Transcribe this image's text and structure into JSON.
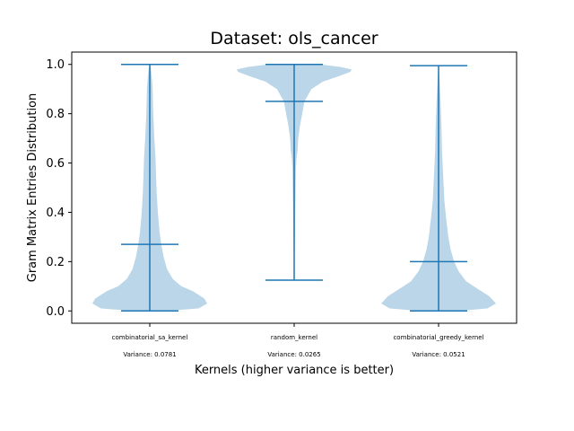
{
  "chart_data": {
    "type": "violin",
    "title": "Dataset: ols_cancer",
    "xlabel": "Kernels (higher variance is better)",
    "ylabel": "Gram Matrix Entries Distribution",
    "ylim": [
      -0.05,
      1.05
    ],
    "yticks": [
      "0.0",
      "0.2",
      "0.4",
      "0.6",
      "0.8",
      "1.0"
    ],
    "grid": false,
    "violin_color": "#1f77b4",
    "categories": [
      {
        "name": "combinatorial_sa_kernel",
        "variance_label": "Variance: 0.0781",
        "min": 0.0,
        "median": 0.27,
        "max": 1.0,
        "profile": [
          [
            0.0,
            0.3
          ],
          [
            0.01,
            0.85
          ],
          [
            0.03,
            1.0
          ],
          [
            0.05,
            0.95
          ],
          [
            0.08,
            0.75
          ],
          [
            0.1,
            0.55
          ],
          [
            0.13,
            0.4
          ],
          [
            0.17,
            0.3
          ],
          [
            0.22,
            0.24
          ],
          [
            0.27,
            0.2
          ],
          [
            0.32,
            0.17
          ],
          [
            0.4,
            0.14
          ],
          [
            0.48,
            0.12
          ],
          [
            0.55,
            0.11
          ],
          [
            0.62,
            0.1
          ],
          [
            0.7,
            0.08
          ],
          [
            0.8,
            0.06
          ],
          [
            0.9,
            0.05
          ],
          [
            0.95,
            0.035
          ],
          [
            0.98,
            0.02
          ],
          [
            1.0,
            0.005
          ]
        ]
      },
      {
        "name": "random_kernel",
        "variance_label": "Variance: 0.0265",
        "min": 0.125,
        "median": 0.85,
        "max": 1.0,
        "profile": [
          [
            0.125,
            0.0
          ],
          [
            0.2,
            0.006
          ],
          [
            0.3,
            0.012
          ],
          [
            0.4,
            0.018
          ],
          [
            0.5,
            0.025
          ],
          [
            0.58,
            0.03
          ],
          [
            0.62,
            0.04
          ],
          [
            0.65,
            0.06
          ],
          [
            0.7,
            0.07
          ],
          [
            0.75,
            0.1
          ],
          [
            0.8,
            0.14
          ],
          [
            0.85,
            0.18
          ],
          [
            0.9,
            0.3
          ],
          [
            0.93,
            0.5
          ],
          [
            0.95,
            0.75
          ],
          [
            0.97,
            0.98
          ],
          [
            0.98,
            1.0
          ],
          [
            0.99,
            0.8
          ],
          [
            1.0,
            0.45
          ]
        ]
      },
      {
        "name": "combinatorial_greedy_kernel",
        "variance_label": "Variance: 0.0521",
        "min": 0.0,
        "median": 0.2,
        "max": 0.995,
        "profile": [
          [
            0.0,
            0.35
          ],
          [
            0.01,
            0.85
          ],
          [
            0.03,
            1.0
          ],
          [
            0.06,
            0.88
          ],
          [
            0.09,
            0.68
          ],
          [
            0.12,
            0.48
          ],
          [
            0.16,
            0.35
          ],
          [
            0.2,
            0.27
          ],
          [
            0.25,
            0.21
          ],
          [
            0.3,
            0.17
          ],
          [
            0.38,
            0.13
          ],
          [
            0.45,
            0.1
          ],
          [
            0.55,
            0.08
          ],
          [
            0.65,
            0.06
          ],
          [
            0.75,
            0.05
          ],
          [
            0.85,
            0.035
          ],
          [
            0.92,
            0.02
          ],
          [
            0.97,
            0.01
          ],
          [
            0.995,
            0.002
          ]
        ]
      }
    ]
  }
}
